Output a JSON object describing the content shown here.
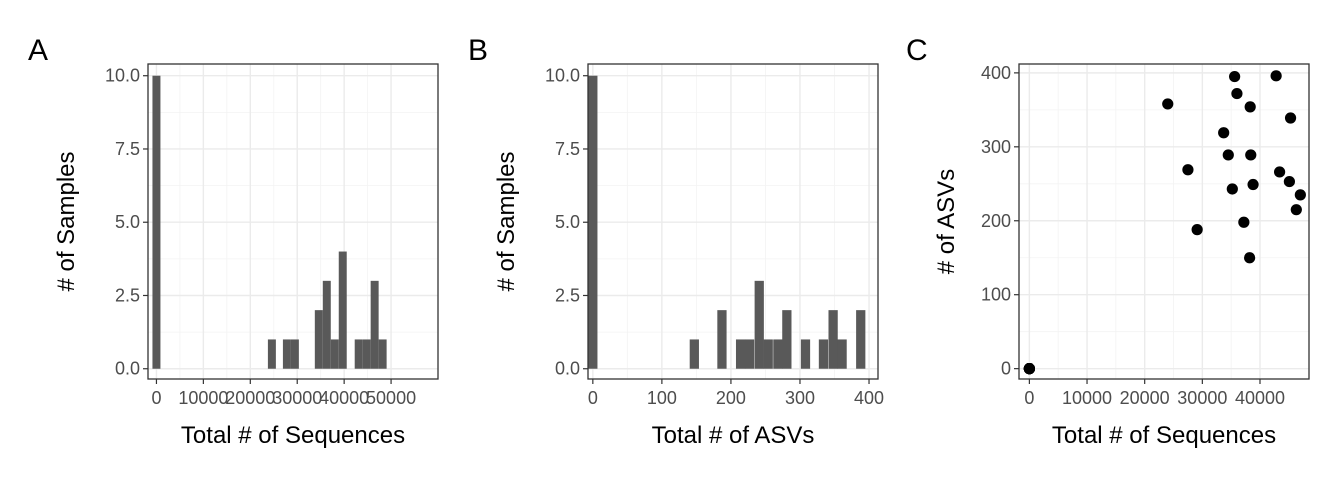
{
  "chart_data": [
    {
      "panel": "A",
      "type": "bar",
      "title": "",
      "xlabel": "Total # of Sequences",
      "ylabel": "# of Samples",
      "xlim": [
        -1800,
        60000
      ],
      "ylim": [
        -0.35,
        10.4
      ],
      "binwidth": 1700,
      "xticks": [
        0,
        10000,
        20000,
        30000,
        40000,
        50000
      ],
      "xtick_labels": [
        "0",
        "10000",
        "20000",
        "30000",
        "40000",
        "50000"
      ],
      "yticks": [
        0,
        2.5,
        5,
        7.5,
        10
      ],
      "ytick_labels": [
        "0.0",
        "2.5",
        "5.0",
        "7.5",
        "10.0"
      ],
      "bars": [
        {
          "x": 0,
          "count": 10
        },
        {
          "x": 24600,
          "count": 1
        },
        {
          "x": 27800,
          "count": 1
        },
        {
          "x": 29500,
          "count": 1
        },
        {
          "x": 34600,
          "count": 2
        },
        {
          "x": 36300,
          "count": 3
        },
        {
          "x": 38000,
          "count": 1
        },
        {
          "x": 39700,
          "count": 4
        },
        {
          "x": 41400,
          "count": 0
        },
        {
          "x": 43100,
          "count": 1
        },
        {
          "x": 44800,
          "count": 1
        },
        {
          "x": 46500,
          "count": 3
        },
        {
          "x": 48200,
          "count": 1
        }
      ],
      "grid": true
    },
    {
      "panel": "B",
      "type": "bar",
      "title": "",
      "xlabel": "Total # of ASVs",
      "ylabel": "# of Samples",
      "xlim": [
        -7,
        413
      ],
      "ylim": [
        -0.35,
        10.4
      ],
      "binwidth": 13.4,
      "xticks": [
        0,
        100,
        200,
        300,
        400
      ],
      "xtick_labels": [
        "0",
        "100",
        "200",
        "300",
        "400"
      ],
      "yticks": [
        0,
        2.5,
        5,
        7.5,
        10
      ],
      "ytick_labels": [
        "0.0",
        "2.5",
        "5.0",
        "7.5",
        "10.0"
      ],
      "bars": [
        {
          "x": 0,
          "count": 10
        },
        {
          "x": 147,
          "count": 1
        },
        {
          "x": 187,
          "count": 2
        },
        {
          "x": 214,
          "count": 1
        },
        {
          "x": 227,
          "count": 1
        },
        {
          "x": 241,
          "count": 3
        },
        {
          "x": 254,
          "count": 1
        },
        {
          "x": 268,
          "count": 1
        },
        {
          "x": 281,
          "count": 2
        },
        {
          "x": 308,
          "count": 1
        },
        {
          "x": 334,
          "count": 1
        },
        {
          "x": 348,
          "count": 2
        },
        {
          "x": 361,
          "count": 1
        },
        {
          "x": 388,
          "count": 2
        }
      ],
      "grid": true
    },
    {
      "panel": "C",
      "type": "scatter",
      "title": "",
      "xlabel": "Total # of Sequences",
      "ylabel": "# of ASVs",
      "xlim": [
        -1800,
        48500
      ],
      "ylim": [
        -14,
        412
      ],
      "xticks": [
        0,
        10000,
        20000,
        30000,
        40000
      ],
      "xtick_labels": [
        "0",
        "10000",
        "20000",
        "30000",
        "40000"
      ],
      "yticks": [
        0,
        100,
        200,
        300,
        400
      ],
      "ytick_labels": [
        "0",
        "100",
        "200",
        "300",
        "400"
      ],
      "points": [
        {
          "x": 0,
          "y": 0
        },
        {
          "x": 0,
          "y": 0
        },
        {
          "x": 0,
          "y": 0
        },
        {
          "x": 0,
          "y": 0
        },
        {
          "x": 0,
          "y": 0
        },
        {
          "x": 0,
          "y": 0
        },
        {
          "x": 0,
          "y": 0
        },
        {
          "x": 0,
          "y": 0
        },
        {
          "x": 0,
          "y": 0
        },
        {
          "x": 0,
          "y": 0
        },
        {
          "x": 24000,
          "y": 358
        },
        {
          "x": 27500,
          "y": 269
        },
        {
          "x": 29100,
          "y": 188
        },
        {
          "x": 33700,
          "y": 319
        },
        {
          "x": 34500,
          "y": 289
        },
        {
          "x": 35200,
          "y": 243
        },
        {
          "x": 35600,
          "y": 395
        },
        {
          "x": 36000,
          "y": 372
        },
        {
          "x": 37200,
          "y": 198
        },
        {
          "x": 38300,
          "y": 354
        },
        {
          "x": 38400,
          "y": 289
        },
        {
          "x": 38800,
          "y": 249
        },
        {
          "x": 38200,
          "y": 150
        },
        {
          "x": 42800,
          "y": 396
        },
        {
          "x": 43400,
          "y": 266
        },
        {
          "x": 45100,
          "y": 253
        },
        {
          "x": 45300,
          "y": 339
        },
        {
          "x": 46300,
          "y": 215
        },
        {
          "x": 47000,
          "y": 235
        }
      ],
      "grid": true
    }
  ]
}
